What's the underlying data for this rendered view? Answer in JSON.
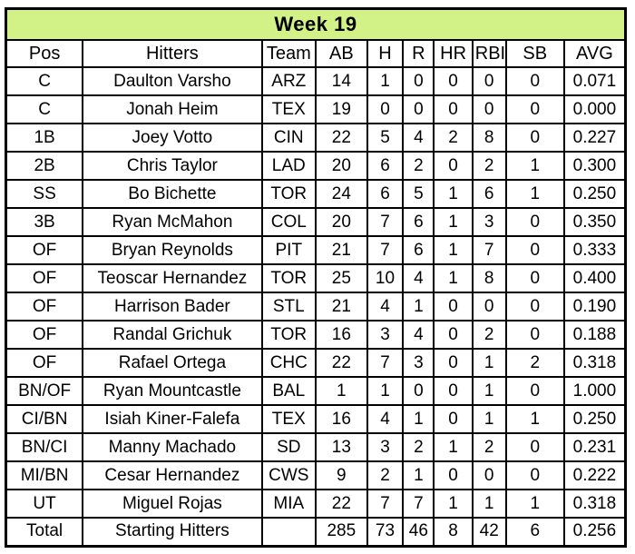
{
  "chart_data": {
    "type": "table",
    "title": "Week 19",
    "columns": [
      "Pos",
      "Hitters",
      "Team",
      "AB",
      "H",
      "R",
      "HR",
      "RBI",
      "SB",
      "AVG"
    ],
    "rows": [
      [
        "C",
        "Daulton Varsho",
        "ARZ",
        "14",
        "1",
        "0",
        "0",
        "0",
        "0",
        "0.071"
      ],
      [
        "C",
        "Jonah Heim",
        "TEX",
        "19",
        "0",
        "0",
        "0",
        "0",
        "0",
        "0.000"
      ],
      [
        "1B",
        "Joey Votto",
        "CIN",
        "22",
        "5",
        "4",
        "2",
        "8",
        "0",
        "0.227"
      ],
      [
        "2B",
        "Chris Taylor",
        "LAD",
        "20",
        "6",
        "2",
        "0",
        "2",
        "1",
        "0.300"
      ],
      [
        "SS",
        "Bo Bichette",
        "TOR",
        "24",
        "6",
        "5",
        "1",
        "6",
        "1",
        "0.250"
      ],
      [
        "3B",
        "Ryan McMahon",
        "COL",
        "20",
        "7",
        "6",
        "1",
        "3",
        "0",
        "0.350"
      ],
      [
        "OF",
        "Bryan Reynolds",
        "PIT",
        "21",
        "7",
        "6",
        "1",
        "7",
        "0",
        "0.333"
      ],
      [
        "OF",
        "Teoscar Hernandez",
        "TOR",
        "25",
        "10",
        "4",
        "1",
        "8",
        "0",
        "0.400"
      ],
      [
        "OF",
        "Harrison Bader",
        "STL",
        "21",
        "4",
        "1",
        "0",
        "0",
        "0",
        "0.190"
      ],
      [
        "OF",
        "Randal Grichuk",
        "TOR",
        "16",
        "3",
        "4",
        "0",
        "2",
        "0",
        "0.188"
      ],
      [
        "OF",
        "Rafael Ortega",
        "CHC",
        "22",
        "7",
        "3",
        "0",
        "1",
        "2",
        "0.318"
      ],
      [
        "BN/OF",
        "Ryan Mountcastle",
        "BAL",
        "1",
        "1",
        "0",
        "0",
        "1",
        "0",
        "1.000"
      ],
      [
        "CI/BN",
        "Isiah Kiner-Falefa",
        "TEX",
        "16",
        "4",
        "1",
        "0",
        "1",
        "1",
        "0.250"
      ],
      [
        "BN/CI",
        "Manny Machado",
        "SD",
        "13",
        "3",
        "2",
        "1",
        "2",
        "0",
        "0.231"
      ],
      [
        "MI/BN",
        "Cesar Hernandez",
        "CWS",
        "9",
        "2",
        "1",
        "0",
        "0",
        "0",
        "0.222"
      ],
      [
        "UT",
        "Miguel Rojas",
        "MIA",
        "22",
        "7",
        "7",
        "1",
        "1",
        "1",
        "0.318"
      ],
      [
        "Total",
        "Starting Hitters",
        "",
        "285",
        "73",
        "46",
        "8",
        "42",
        "6",
        "0.256"
      ]
    ],
    "layout_hints": {
      "grid": "on",
      "title_position": "top-banner",
      "all_cells_centered": true
    }
  },
  "colors": {
    "title_bg": "#d2f187",
    "border": "#000000",
    "cell_bg": "#ffffff",
    "text": "#000000"
  }
}
